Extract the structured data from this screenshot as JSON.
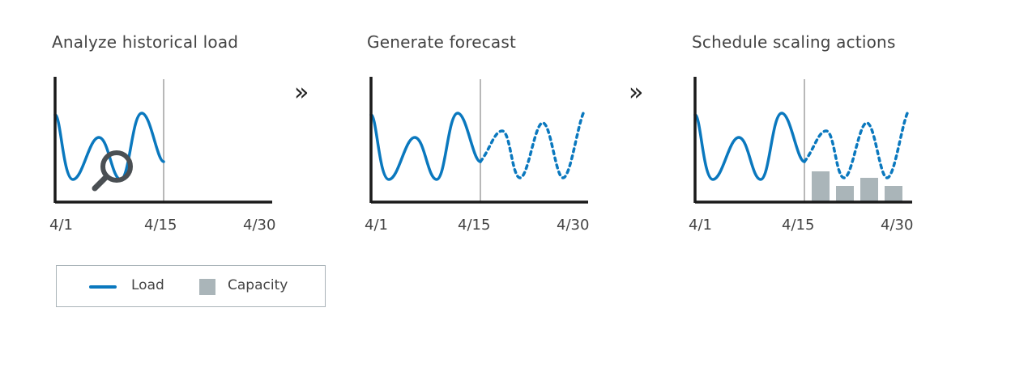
{
  "colors": {
    "load": "#0a78be",
    "capacity": "#aab5b9",
    "axis": "#1a1a1a",
    "divider": "#888888",
    "magnifier": "#4a4f53"
  },
  "panels": [
    {
      "title": "Analyze historical load",
      "ticks": [
        "4/1",
        "4/15",
        "4/30"
      ],
      "icon": "magnifier-icon"
    },
    {
      "title": "Generate forecast",
      "ticks": [
        "4/1",
        "4/15",
        "4/30"
      ]
    },
    {
      "title": "Schedule scaling actions",
      "ticks": [
        "4/1",
        "4/15",
        "4/30"
      ]
    }
  ],
  "arrows": [
    "»",
    "»"
  ],
  "legend": {
    "load_label": "Load",
    "capacity_label": "Capacity"
  }
}
